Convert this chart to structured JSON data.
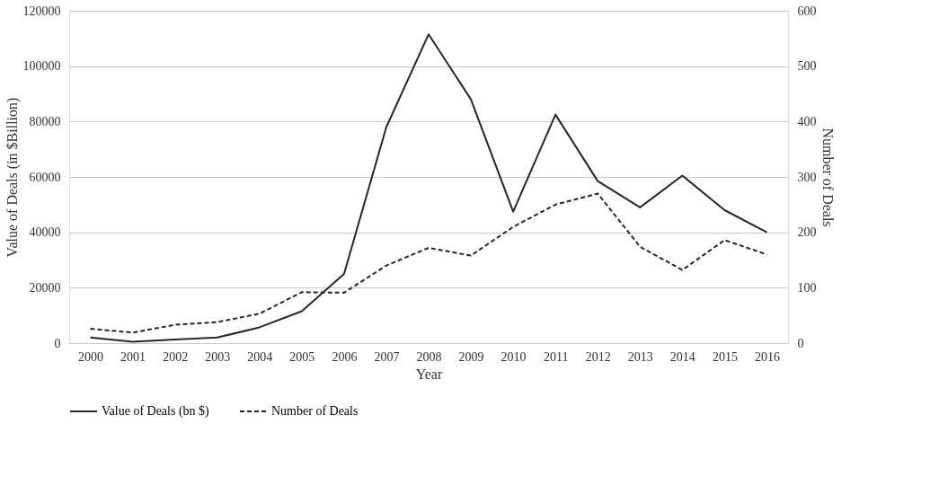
{
  "chart_data": {
    "type": "line",
    "xlabel": "Year",
    "ylabel": "Value of Deals (in $Billion)",
    "y2label": "Number of Deals",
    "categories": [
      "2000",
      "2001",
      "2002",
      "2003",
      "2004",
      "2005",
      "2006",
      "2007",
      "2008",
      "2009",
      "2010",
      "2011",
      "2012",
      "2013",
      "2014",
      "2015",
      "2016"
    ],
    "series": [
      {
        "name": "Value of Deals (bn $)",
        "color": "#262626",
        "line_style": "solid",
        "values": [
          2000,
          500,
          1300,
          2000,
          5700,
          11500,
          25000,
          78000,
          111500,
          88000,
          47500,
          82500,
          58500,
          49000,
          60500,
          48000,
          40000
        ]
      },
      {
        "name": "Number of Deals",
        "color": "#262626",
        "line_style": "dashed",
        "axis": "y2",
        "values": [
          26,
          19,
          33,
          38,
          53,
          92,
          91,
          140,
          172,
          158,
          210,
          250,
          270,
          174,
          132,
          186,
          160
        ]
      }
    ],
    "ylim": [
      0,
      120000
    ],
    "yticks": [
      0,
      20000,
      40000,
      60000,
      80000,
      100000,
      120000
    ],
    "y2lim": [
      0,
      600
    ],
    "y2ticks": [
      0,
      100,
      200,
      300,
      400,
      500,
      600
    ],
    "grid": "y",
    "legend": "bottom",
    "marker": "none"
  }
}
